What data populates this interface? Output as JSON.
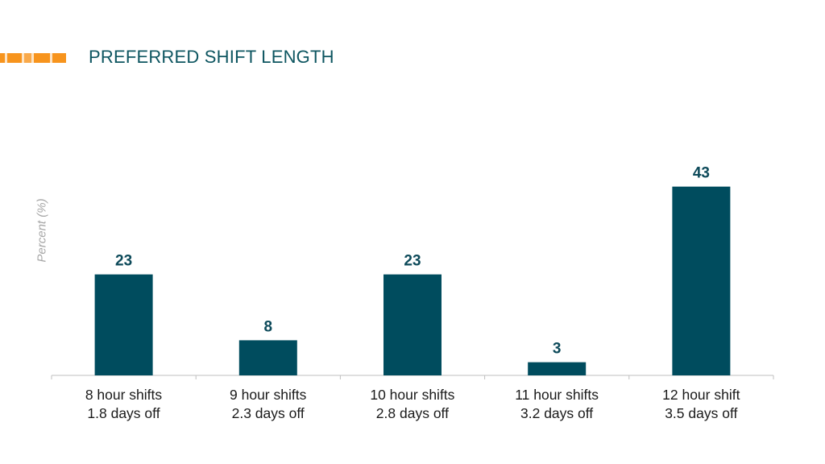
{
  "slide": {
    "title": "PREFERRED SHIFT LENGTH"
  },
  "chart_data": {
    "type": "bar",
    "categories": [
      [
        "8 hour shifts",
        "1.8 days off"
      ],
      [
        "9 hour shifts",
        "2.3 days off"
      ],
      [
        "10 hour shifts",
        "2.8 days off"
      ],
      [
        "11 hour shifts",
        "3.2 days off"
      ],
      [
        "12 hour shift",
        "3.5 days off"
      ]
    ],
    "values": [
      23,
      8,
      23,
      3,
      43
    ],
    "data_labels": [
      "23",
      "8",
      "23",
      "3",
      "43"
    ],
    "title": "",
    "ylabel": "Percent (%)",
    "xlabel": "",
    "ylim": [
      0,
      50
    ],
    "grid": false,
    "legend": "none",
    "bar_color": "#004c5e",
    "label_color": "#0d4a5a",
    "axis_color": "#bfbfbf",
    "accent_colors": [
      "#f7941d",
      "#f9b36b",
      "#fbd0a0"
    ]
  }
}
